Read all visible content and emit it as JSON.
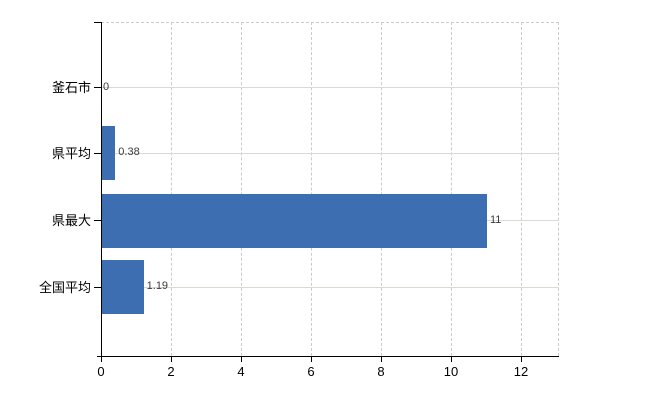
{
  "chart_data": {
    "type": "bar",
    "orientation": "horizontal",
    "title": "",
    "xlabel": "",
    "ylabel": "",
    "categories": [
      "釜石市",
      "県平均",
      "県最大",
      "全国平均"
    ],
    "values": [
      0,
      0.38,
      11,
      1.19
    ],
    "value_labels": [
      "0",
      "0.38",
      "11",
      "1.19"
    ],
    "x_ticks": [
      0,
      2,
      4,
      6,
      8,
      10,
      12
    ],
    "xlim": [
      0,
      13.1
    ],
    "grid": true,
    "legend": false,
    "colors": {
      "bar": "#3d6eb1",
      "h_grid": "#d6dcd2",
      "v_grid": "#c9c9d2",
      "axis": "#000000",
      "tick_label": "#000000",
      "value_label": "#3a3a3a",
      "background": "#ffffff"
    }
  }
}
